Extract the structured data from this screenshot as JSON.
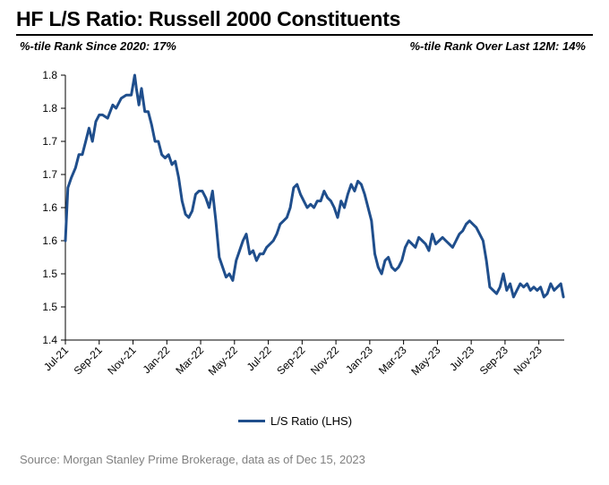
{
  "header": {
    "title": "HF L/S Ratio: Russell 2000 Constituents",
    "subtitle_left": "%-tile Rank Since 2020: 17%",
    "subtitle_right": "%-tile Rank Over Last 12M: 14%"
  },
  "footer": {
    "source": "Source: Morgan Stanley Prime Brokerage, data as of Dec 15, 2023"
  },
  "chart_data": {
    "type": "line",
    "ylim": [
      1.4,
      1.8
    ],
    "yticks": [
      1.4,
      1.45,
      1.5,
      1.55,
      1.6,
      1.65,
      1.7,
      1.75,
      1.8
    ],
    "ytick_labels": [
      "1.4",
      "1.5",
      "1.5",
      "1.6",
      "1.6",
      "1.7",
      "1.7",
      "1.8",
      "1.8"
    ],
    "xlim": [
      0,
      29.5
    ],
    "xticks": [
      0,
      2,
      4,
      6,
      8,
      10,
      12,
      14,
      16,
      18,
      20,
      22,
      24,
      26,
      28
    ],
    "xtick_labels": [
      "Jul-21",
      "Sep-21",
      "Nov-21",
      "Jan-22",
      "Mar-22",
      "May-22",
      "Jul-22",
      "Sep-22",
      "Nov-22",
      "Jan-23",
      "Mar-23",
      "May-23",
      "Jul-23",
      "Sep-23",
      "Nov-23"
    ],
    "legend_position": "bottom-center",
    "grid": false,
    "series": [
      {
        "name": "L/S Ratio (LHS)",
        "color": "#1f4e8c",
        "x": [
          0,
          0.15,
          0.35,
          0.6,
          0.8,
          1.0,
          1.2,
          1.4,
          1.6,
          1.8,
          2.0,
          2.2,
          2.5,
          2.8,
          3.0,
          3.3,
          3.6,
          3.9,
          4.1,
          4.2,
          4.35,
          4.5,
          4.7,
          4.9,
          5.1,
          5.3,
          5.5,
          5.7,
          5.9,
          6.1,
          6.3,
          6.5,
          6.7,
          6.9,
          7.1,
          7.3,
          7.5,
          7.7,
          7.9,
          8.1,
          8.3,
          8.5,
          8.7,
          8.9,
          9.1,
          9.3,
          9.5,
          9.7,
          9.9,
          10.1,
          10.3,
          10.5,
          10.7,
          10.9,
          11.1,
          11.3,
          11.5,
          11.7,
          11.9,
          12.1,
          12.3,
          12.5,
          12.7,
          12.9,
          13.1,
          13.3,
          13.5,
          13.7,
          13.9,
          14.1,
          14.3,
          14.5,
          14.7,
          14.9,
          15.1,
          15.3,
          15.5,
          15.7,
          15.9,
          16.1,
          16.3,
          16.5,
          16.7,
          16.9,
          17.1,
          17.3,
          17.5,
          17.7,
          17.9,
          18.1,
          18.3,
          18.5,
          18.7,
          18.9,
          19.1,
          19.3,
          19.5,
          19.7,
          19.9,
          20.1,
          20.3,
          20.5,
          20.7,
          20.9,
          21.1,
          21.3,
          21.5,
          21.7,
          21.9,
          22.1,
          22.3,
          22.5,
          22.7,
          22.9,
          23.1,
          23.3,
          23.5,
          23.7,
          23.9,
          24.1,
          24.3,
          24.5,
          24.7,
          24.9,
          25.1,
          25.3,
          25.5,
          25.7,
          25.9,
          26.1,
          26.3,
          26.5,
          26.7,
          26.9,
          27.1,
          27.3,
          27.5,
          27.7,
          27.9,
          28.1,
          28.3,
          28.5,
          28.7,
          28.9,
          29.1,
          29.3,
          29.45
        ],
        "values": [
          1.55,
          1.63,
          1.645,
          1.66,
          1.68,
          1.68,
          1.7,
          1.72,
          1.7,
          1.73,
          1.74,
          1.74,
          1.735,
          1.755,
          1.75,
          1.765,
          1.77,
          1.77,
          1.8,
          1.78,
          1.755,
          1.78,
          1.745,
          1.745,
          1.725,
          1.7,
          1.7,
          1.68,
          1.675,
          1.68,
          1.665,
          1.67,
          1.645,
          1.61,
          1.59,
          1.585,
          1.595,
          1.62,
          1.625,
          1.625,
          1.615,
          1.6,
          1.625,
          1.58,
          1.525,
          1.51,
          1.495,
          1.5,
          1.49,
          1.52,
          1.535,
          1.55,
          1.56,
          1.53,
          1.535,
          1.52,
          1.53,
          1.53,
          1.54,
          1.545,
          1.55,
          1.56,
          1.575,
          1.58,
          1.585,
          1.6,
          1.63,
          1.635,
          1.62,
          1.61,
          1.6,
          1.605,
          1.6,
          1.61,
          1.61,
          1.625,
          1.615,
          1.61,
          1.6,
          1.585,
          1.61,
          1.6,
          1.62,
          1.635,
          1.625,
          1.64,
          1.635,
          1.62,
          1.6,
          1.58,
          1.53,
          1.51,
          1.5,
          1.52,
          1.525,
          1.51,
          1.505,
          1.51,
          1.52,
          1.54,
          1.55,
          1.545,
          1.54,
          1.555,
          1.55,
          1.545,
          1.535,
          1.56,
          1.545,
          1.55,
          1.555,
          1.55,
          1.545,
          1.54,
          1.55,
          1.56,
          1.565,
          1.575,
          1.58,
          1.575,
          1.57,
          1.56,
          1.55,
          1.52,
          1.48,
          1.475,
          1.47,
          1.48,
          1.5,
          1.475,
          1.485,
          1.465,
          1.475,
          1.485,
          1.48,
          1.485,
          1.475,
          1.48,
          1.475,
          1.48,
          1.465,
          1.47,
          1.485,
          1.475,
          1.48,
          1.485,
          1.465
        ]
      }
    ]
  }
}
